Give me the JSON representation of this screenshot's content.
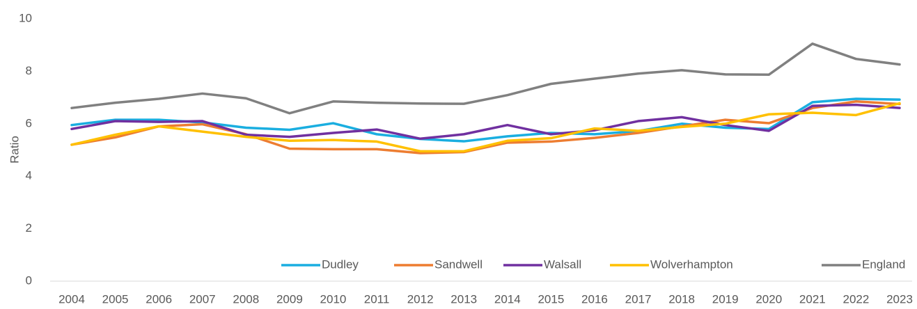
{
  "chart_data": {
    "type": "line",
    "y_label": "Ratio",
    "categories": [
      "2004",
      "2005",
      "2006",
      "2007",
      "2008",
      "2009",
      "2010",
      "2011",
      "2012",
      "2013",
      "2014",
      "2015",
      "2016",
      "2017",
      "2018",
      "2019",
      "2020",
      "2021",
      "2022",
      "2023"
    ],
    "series": [
      {
        "name": "Dudley",
        "color": "#1aaee0",
        "values": [
          5.95,
          6.15,
          6.15,
          6.05,
          5.85,
          5.77,
          6.02,
          5.6,
          5.42,
          5.33,
          5.52,
          5.65,
          5.6,
          5.72,
          6.0,
          5.85,
          5.8,
          6.82,
          6.95,
          6.92
        ]
      },
      {
        "name": "Sandwell",
        "color": "#ed7d31",
        "values": [
          5.2,
          5.48,
          5.9,
          5.98,
          5.6,
          5.05,
          5.03,
          5.03,
          4.88,
          4.92,
          5.28,
          5.32,
          5.46,
          5.65,
          5.9,
          6.15,
          6.02,
          6.6,
          6.85,
          6.75
        ]
      },
      {
        "name": "Walsall",
        "color": "#7030a0",
        "values": [
          5.8,
          6.1,
          6.07,
          6.1,
          5.58,
          5.5,
          5.65,
          5.78,
          5.43,
          5.6,
          5.95,
          5.6,
          5.75,
          6.1,
          6.25,
          5.95,
          5.73,
          6.68,
          6.72,
          6.6
        ]
      },
      {
        "name": "Wolverhampton",
        "color": "#ffc000",
        "values": [
          5.2,
          5.58,
          5.9,
          5.7,
          5.5,
          5.35,
          5.38,
          5.32,
          4.95,
          4.95,
          5.35,
          5.45,
          5.82,
          5.73,
          5.88,
          6.0,
          6.36,
          6.42,
          6.33,
          6.78
        ]
      },
      {
        "name": "England",
        "color": "#808080",
        "values": [
          6.6,
          6.8,
          6.95,
          7.15,
          6.97,
          6.4,
          6.85,
          6.8,
          6.77,
          6.76,
          7.09,
          7.52,
          7.72,
          7.91,
          8.04,
          7.88,
          7.87,
          9.05,
          8.47,
          8.26
        ]
      }
    ],
    "ylim": [
      0,
      10
    ],
    "yticks": [
      0,
      2,
      4,
      6,
      8,
      10
    ],
    "grid": false,
    "legend": "bottom"
  }
}
